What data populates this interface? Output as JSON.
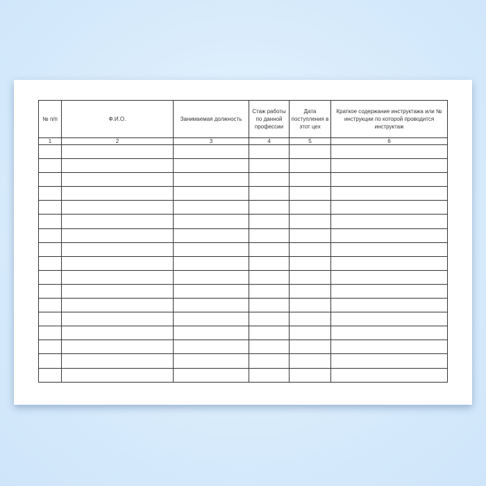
{
  "table": {
    "headers": [
      "№ п/п",
      "Ф.И.О.",
      "Занимаемая должность",
      "Стаж работы по данной профессии",
      "Дата поступления в этот цех",
      "Краткое содержание инструктажа или № инструкции по которой проводится инструктаж"
    ],
    "column_numbers": [
      "1",
      "2",
      "3",
      "4",
      "5",
      "6"
    ],
    "empty_rows": 17
  }
}
